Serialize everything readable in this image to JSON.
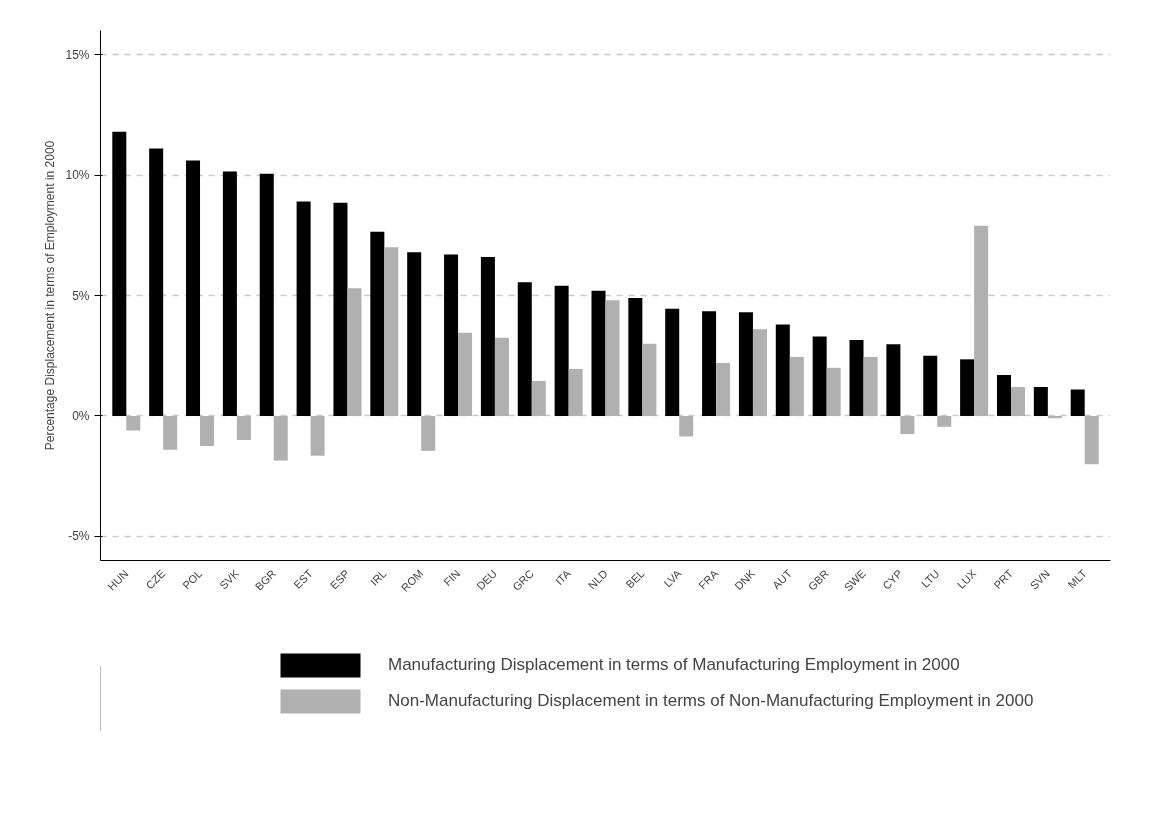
{
  "chart_data": {
    "type": "bar",
    "ylabel": "Percentage Displacement in terms of Employment in 2000",
    "categories": [
      "HUN",
      "CZE",
      "POL",
      "SVK",
      "BGR",
      "EST",
      "ESP",
      "IRL",
      "ROM",
      "FIN",
      "DEU",
      "GRC",
      "ITA",
      "NLD",
      "BEL",
      "LVA",
      "FRA",
      "DNK",
      "AUT",
      "GBR",
      "SWE",
      "CYP",
      "LTU",
      "LUX",
      "PRT",
      "SVN",
      "MLT"
    ],
    "series": [
      {
        "name": "Manufacturing Displacement in terms of Manufacturing Employment in 2000",
        "color": "#000000",
        "values": [
          11.8,
          11.1,
          10.6,
          10.15,
          10.05,
          8.9,
          8.85,
          7.65,
          6.8,
          6.7,
          6.6,
          5.55,
          5.4,
          5.2,
          4.9,
          4.45,
          4.35,
          4.3,
          3.8,
          3.3,
          3.15,
          2.98,
          2.5,
          2.35,
          1.7,
          1.2,
          1.1
        ]
      },
      {
        "name": "Non-Manufacturing Displacement in terms of Non-Manufacturing Employment in 2000",
        "color": "#b0b0b0",
        "values": [
          -0.6,
          -1.4,
          -1.25,
          -1.0,
          -1.85,
          -1.65,
          5.3,
          7.0,
          -1.45,
          3.45,
          3.25,
          1.45,
          1.95,
          4.8,
          3.0,
          -0.85,
          2.2,
          3.6,
          2.45,
          2.0,
          2.45,
          -0.75,
          -0.45,
          7.9,
          1.2,
          -0.1,
          -2.0
        ]
      }
    ],
    "ylim": [
      -6,
      16
    ],
    "yticks": [
      {
        "value": -5,
        "label": "-5%"
      },
      {
        "value": 0,
        "label": "0%"
      },
      {
        "value": 5,
        "label": "5%"
      },
      {
        "value": 10,
        "label": "10%"
      },
      {
        "value": 15,
        "label": "15%"
      }
    ],
    "grid": "y",
    "legend": "bottom"
  }
}
